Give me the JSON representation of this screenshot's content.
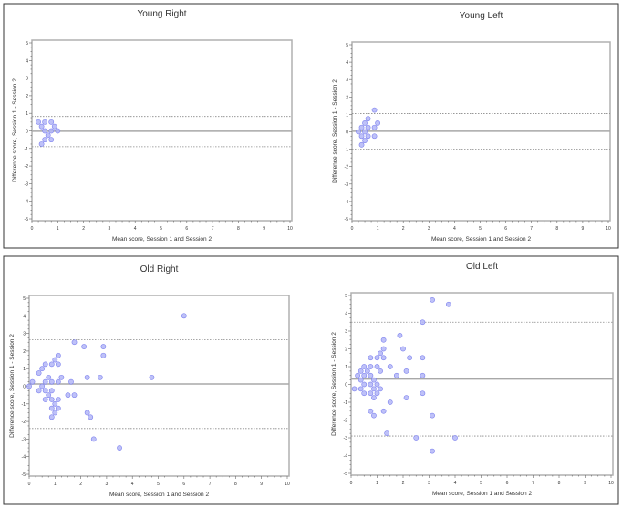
{
  "chart_data": [
    {
      "type": "scatter",
      "title": "Young Right",
      "xlabel": "Mean score, Session 1 and Session 2",
      "ylabel": "Difference score, Session 1 - Session 2",
      "xlim": [
        0,
        10
      ],
      "ylim": [
        -5,
        5
      ],
      "xticks": [
        "0",
        "1",
        "2",
        "3",
        "4",
        "5",
        "6",
        "7",
        "8",
        "9",
        "10"
      ],
      "yticks": [
        "5",
        "4",
        "3",
        "2",
        "1",
        "0",
        "-1",
        "-2",
        "-3",
        "-4",
        "-5"
      ],
      "mean_line": -0.02,
      "upper_limit": 0.82,
      "lower_limit": -0.9,
      "points": [
        [
          0.25,
          0.5
        ],
        [
          0.5,
          0.5
        ],
        [
          0.75,
          0.5
        ],
        [
          0.375,
          0.25
        ],
        [
          0.875,
          0.25
        ],
        [
          0.5,
          0
        ],
        [
          0.75,
          0
        ],
        [
          1.0,
          0
        ],
        [
          0.625,
          -0.25
        ],
        [
          0.5,
          -0.5
        ],
        [
          0.75,
          -0.5
        ],
        [
          0.375,
          -0.75
        ]
      ]
    },
    {
      "type": "scatter",
      "title": "Young Left",
      "xlabel": "Mean score, Session 1 and Session 2",
      "ylabel": "Difference score, Session 1 - Session 2",
      "xlim": [
        0,
        10
      ],
      "ylim": [
        -5,
        5
      ],
      "xticks": [
        "0",
        "1",
        "2",
        "3",
        "4",
        "5",
        "6",
        "7",
        "8",
        "9",
        "10"
      ],
      "yticks": [
        "5",
        "4",
        "3",
        "2",
        "1",
        "0",
        "-1",
        "-2",
        "-3",
        "-4",
        "-5"
      ],
      "mean_line": 0.03,
      "upper_limit": 1.05,
      "lower_limit": -1.0,
      "points": [
        [
          0.875,
          1.25
        ],
        [
          0.625,
          0.75
        ],
        [
          0.5,
          0.5
        ],
        [
          1.0,
          0.5
        ],
        [
          0.375,
          0.25
        ],
        [
          0.625,
          0.25
        ],
        [
          0.875,
          0.25
        ],
        [
          0.25,
          0
        ],
        [
          0.5,
          0
        ],
        [
          0.375,
          -0.25
        ],
        [
          0.625,
          -0.25
        ],
        [
          0.875,
          -0.25
        ],
        [
          0.5,
          -0.5
        ],
        [
          0.375,
          -0.75
        ]
      ]
    },
    {
      "type": "scatter",
      "title": "Old Right",
      "xlabel": "Mean score, Session 1 and Session 2",
      "ylabel": "Difference score, Session 1 - Session 2",
      "xlim": [
        0,
        10
      ],
      "ylim": [
        -5,
        5
      ],
      "xticks": [
        "0",
        "1",
        "2",
        "3",
        "4",
        "5",
        "6",
        "7",
        "8",
        "9",
        "10"
      ],
      "yticks": [
        "5",
        "4",
        "3",
        "2",
        "1",
        "0",
        "-1",
        "-2",
        "-3",
        "-4",
        "-5"
      ],
      "mean_line": 0.13,
      "upper_limit": 2.65,
      "lower_limit": -2.4,
      "points": [
        [
          6,
          4
        ],
        [
          1.75,
          2.5
        ],
        [
          2.125,
          2.25
        ],
        [
          2.875,
          2.25
        ],
        [
          2.875,
          1.75
        ],
        [
          1.125,
          1.75
        ],
        [
          1.0,
          1.5
        ],
        [
          0.625,
          1.25
        ],
        [
          0.875,
          1.25
        ],
        [
          1.125,
          1.25
        ],
        [
          0.5,
          1.0
        ],
        [
          0.375,
          0.75
        ],
        [
          0.75,
          0.5
        ],
        [
          1.25,
          0.5
        ],
        [
          2.25,
          0.5
        ],
        [
          2.75,
          0.5
        ],
        [
          4.75,
          0.5
        ],
        [
          0.125,
          0.25
        ],
        [
          0.625,
          0.25
        ],
        [
          0.875,
          0.25
        ],
        [
          1.125,
          0.25
        ],
        [
          1.625,
          0.25
        ],
        [
          0,
          0
        ],
        [
          0.5,
          0
        ],
        [
          0.375,
          -0.25
        ],
        [
          0.625,
          -0.25
        ],
        [
          0.875,
          -0.25
        ],
        [
          0.75,
          -0.5
        ],
        [
          1.5,
          -0.5
        ],
        [
          1.75,
          -0.5
        ],
        [
          0.625,
          -0.75
        ],
        [
          0.875,
          -0.75
        ],
        [
          1.125,
          -0.75
        ],
        [
          1.0,
          -1.0
        ],
        [
          0.875,
          -1.25
        ],
        [
          1.125,
          -1.25
        ],
        [
          1.0,
          -1.5
        ],
        [
          2.25,
          -1.5
        ],
        [
          0.875,
          -1.75
        ],
        [
          2.375,
          -1.75
        ],
        [
          2.5,
          -3.0
        ],
        [
          3.5,
          -3.5
        ]
      ]
    },
    {
      "type": "scatter",
      "title": "Old Left",
      "xlabel": "Mean score, Session 1 and Session 2",
      "ylabel": "Difference score, Session 1 - Session 2",
      "xlim": [
        0,
        10
      ],
      "ylim": [
        -5,
        5
      ],
      "xticks": [
        "0",
        "1",
        "2",
        "3",
        "4",
        "5",
        "6",
        "7",
        "8",
        "9",
        "10"
      ],
      "yticks": [
        "5",
        "4",
        "3",
        "2",
        "1",
        "0",
        "-1",
        "-2",
        "-3",
        "-4",
        "-5"
      ],
      "mean_line": 0.3,
      "upper_limit": 3.5,
      "lower_limit": -2.9,
      "points": [
        [
          3.125,
          4.75
        ],
        [
          3.75,
          4.5
        ],
        [
          2.75,
          3.5
        ],
        [
          1.875,
          2.75
        ],
        [
          1.25,
          2.5
        ],
        [
          1.25,
          2.0
        ],
        [
          2.0,
          2.0
        ],
        [
          1.125,
          1.75
        ],
        [
          0.75,
          1.5
        ],
        [
          1.0,
          1.5
        ],
        [
          1.25,
          1.5
        ],
        [
          2.25,
          1.5
        ],
        [
          2.75,
          1.5
        ],
        [
          0.5,
          1.0
        ],
        [
          0.75,
          1.0
        ],
        [
          1.0,
          1.0
        ],
        [
          1.5,
          1.0
        ],
        [
          0.375,
          0.75
        ],
        [
          0.625,
          0.75
        ],
        [
          1.125,
          0.75
        ],
        [
          2.125,
          0.75
        ],
        [
          0.25,
          0.5
        ],
        [
          0.5,
          0.5
        ],
        [
          0.75,
          0.5
        ],
        [
          1.75,
          0.5
        ],
        [
          2.75,
          0.5
        ],
        [
          0.375,
          0.25
        ],
        [
          0.875,
          0.25
        ],
        [
          0.125,
          -0.25
        ],
        [
          0.375,
          -0.25
        ],
        [
          0.875,
          -0.25
        ],
        [
          1.125,
          -0.25
        ],
        [
          0.5,
          0
        ],
        [
          0.75,
          0
        ],
        [
          1.0,
          0
        ],
        [
          0.5,
          -0.5
        ],
        [
          0.75,
          -0.5
        ],
        [
          1.0,
          -0.5
        ],
        [
          2.75,
          -0.5
        ],
        [
          0.875,
          -0.75
        ],
        [
          2.125,
          -0.75
        ],
        [
          1.5,
          -1.0
        ],
        [
          0.75,
          -1.5
        ],
        [
          1.25,
          -1.5
        ],
        [
          0.875,
          -1.75
        ],
        [
          3.125,
          -1.75
        ],
        [
          1.375,
          -2.75
        ],
        [
          2.5,
          -3.0
        ],
        [
          4.0,
          -3.0
        ],
        [
          3.125,
          -3.75
        ]
      ]
    }
  ],
  "colors": {
    "point_fill": "#b3b6f7",
    "point_stroke": "#7c80ee",
    "line": "#a8a8a8",
    "limit": "#8a8a8a"
  }
}
